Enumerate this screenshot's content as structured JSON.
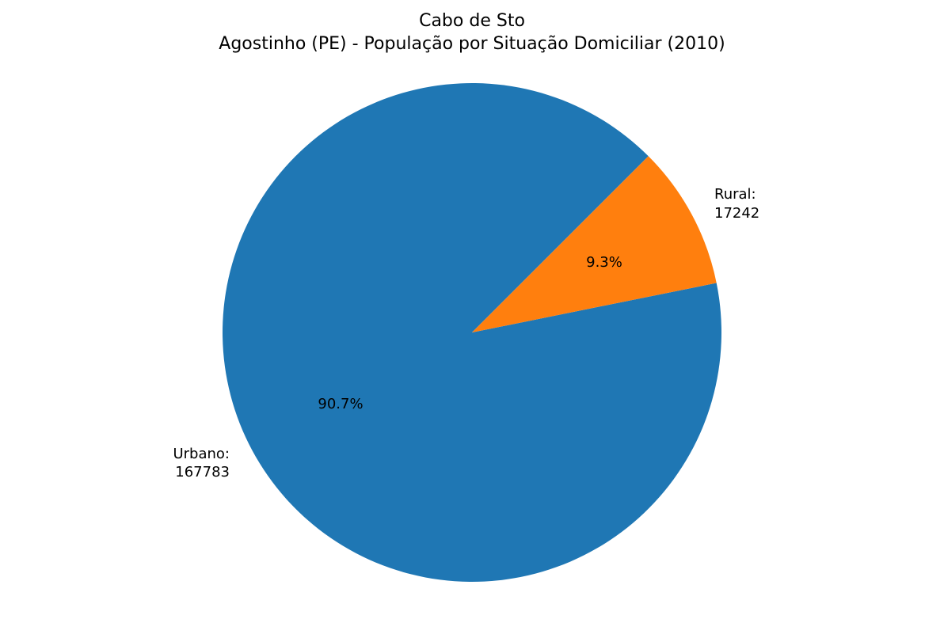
{
  "chart_data": {
    "type": "pie",
    "title_line1": "Cabo de Sto",
    "title_line2": "Agostinho (PE) - População por Situação Domiciliar (2010)",
    "slices": [
      {
        "label": "Urbano:",
        "value_text": "167783",
        "value": 167783,
        "pct_text": "90.7%",
        "color": "#1f77b4"
      },
      {
        "label": "Rural:",
        "value_text": "17242",
        "value": 17242,
        "pct_text": "9.3%",
        "color": "#ff7f0e"
      }
    ]
  }
}
